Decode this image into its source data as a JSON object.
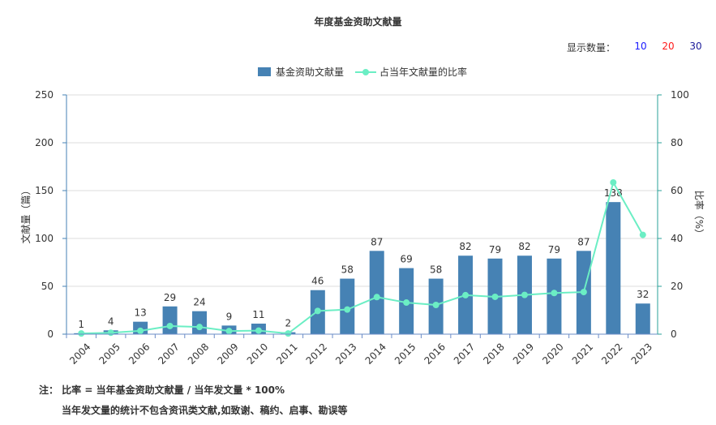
{
  "title": "年度基金资助文献量",
  "count_selector": {
    "label": "显示数量：",
    "options": [
      "10",
      "20",
      "30"
    ]
  },
  "legend": {
    "bar_label": "基金资助文献量",
    "line_label": "占当年文献量的比率"
  },
  "notes": {
    "line1": "注： 比率 = 当年基金资助文献量 / 当年发文量 * 100%",
    "line2": "当年发文量的统计不包含资讯类文献,如致谢、稿约、启事、勘误等"
  },
  "colors": {
    "bar": "#4682b4",
    "line": "#6beec4",
    "axis_left": "#4682b4",
    "axis_right": "#2aa198"
  },
  "chart_data": {
    "type": "bar",
    "categories": [
      "2004",
      "2005",
      "2006",
      "2007",
      "2008",
      "2009",
      "2010",
      "2011",
      "2012",
      "2013",
      "2014",
      "2015",
      "2016",
      "2017",
      "2018",
      "2019",
      "2020",
      "2021",
      "2022",
      "2023"
    ],
    "series": [
      {
        "name": "基金资助文献量",
        "type": "bar",
        "axis": "left",
        "values": [
          1,
          4,
          13,
          29,
          24,
          9,
          11,
          2,
          46,
          58,
          87,
          69,
          58,
          82,
          79,
          82,
          79,
          87,
          138,
          32
        ]
      },
      {
        "name": "占当年文献量的比率",
        "type": "line",
        "axis": "right",
        "values": [
          0.3,
          0.6,
          1.4,
          3.4,
          3.0,
          1.3,
          1.5,
          0.3,
          9.7,
          10.3,
          15.5,
          13.2,
          12.2,
          16.3,
          15.6,
          16.4,
          17.2,
          17.6,
          63.4,
          41.5
        ]
      }
    ],
    "ylabel": "文献量（篇）",
    "y2label": "比率（%）",
    "ylim": [
      0,
      250
    ],
    "y2lim": [
      0,
      100
    ],
    "yticks": [
      0,
      50,
      100,
      150,
      200,
      250
    ],
    "y2ticks": [
      0,
      20,
      40,
      60,
      80,
      100
    ],
    "grid": true,
    "legend_position": "top-center"
  }
}
